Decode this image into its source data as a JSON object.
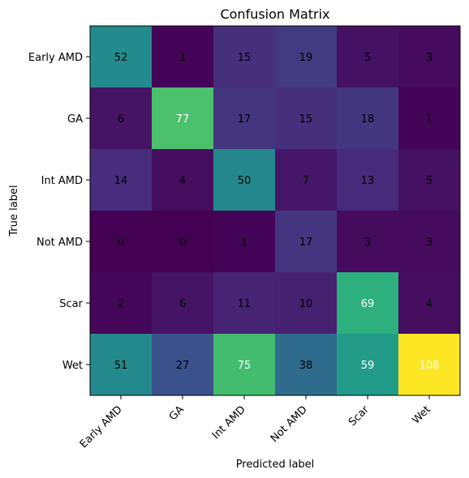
{
  "chart_data": {
    "type": "heatmap",
    "title": "Confusion Matrix",
    "xlabel": "Predicted label",
    "ylabel": "True label",
    "x_categories": [
      "Early AMD",
      "GA",
      "Int AMD",
      "Not AMD",
      "Scar",
      "Wet"
    ],
    "y_categories": [
      "Early AMD",
      "GA",
      "Int AMD",
      "Not AMD",
      "Scar",
      "Wet"
    ],
    "values": [
      [
        52,
        1,
        15,
        19,
        5,
        3
      ],
      [
        6,
        77,
        17,
        15,
        18,
        1
      ],
      [
        14,
        4,
        50,
        7,
        13,
        5
      ],
      [
        0,
        0,
        1,
        17,
        3,
        3
      ],
      [
        2,
        6,
        11,
        10,
        69,
        4
      ],
      [
        51,
        27,
        75,
        38,
        59,
        108
      ]
    ],
    "vmin": 0,
    "vmax": 108,
    "colormap": "viridis",
    "grid": false
  }
}
